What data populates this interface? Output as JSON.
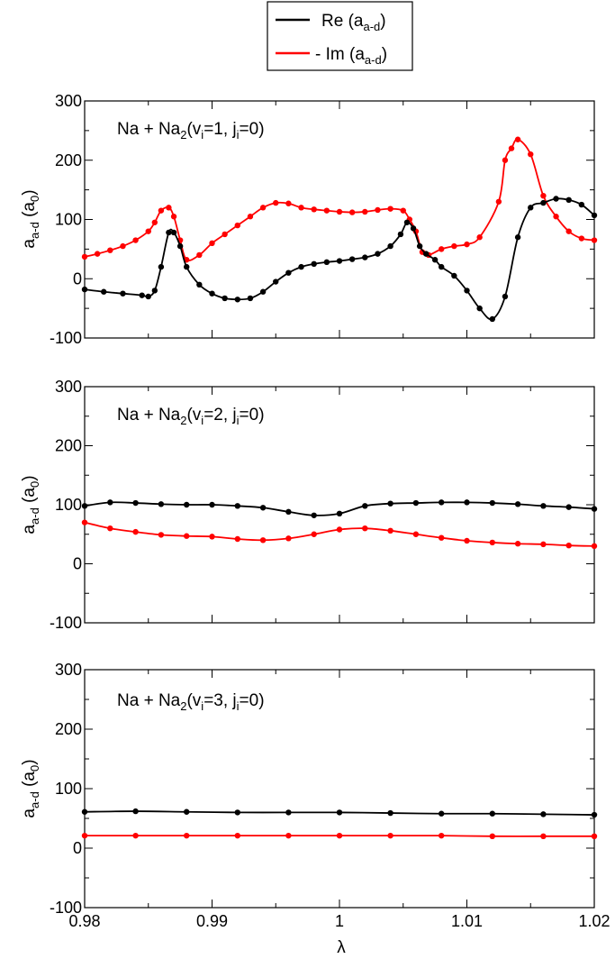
{
  "chart_data": {
    "type": "line",
    "xlabel": "λ",
    "ylabel_main": "a",
    "ylabel_sub": "a-d",
    "ylabel_unit_main": "a",
    "ylabel_unit_sub": "0",
    "xlim": [
      0.98,
      1.02
    ],
    "ylim": [
      -100,
      300
    ],
    "x_ticks": [
      "0.98",
      "0.99",
      "1",
      "1.01",
      "1.02"
    ],
    "y_ticks": [
      "-100",
      "0",
      "100",
      "200",
      "300"
    ],
    "legend": {
      "position": "top-center",
      "entries": [
        {
          "main": "Re (a",
          "sub": "a-d",
          "close": ")",
          "color": "#000000"
        },
        {
          "main": "- Im (a",
          "sub": "a-d",
          "close": ")",
          "color": "#ff0000"
        }
      ]
    },
    "series_colors": {
      "re": "#000000",
      "im": "#ff0000"
    },
    "panels": [
      {
        "label_pre": "Na + Na",
        "label_sub2": "2",
        "label_mid": "(v",
        "label_i1": "i",
        "label_post1": "=1, j",
        "label_i2": "i",
        "label_post2": "=0)",
        "series": [
          {
            "name": "Re",
            "x": [
              0.98,
              0.9815,
              0.983,
              0.9845,
              0.985,
              0.9855,
              0.986,
              0.9866,
              0.987,
              0.9875,
              0.988,
              0.989,
              0.99,
              0.991,
              0.992,
              0.993,
              0.994,
              0.995,
              0.996,
              0.997,
              0.998,
              0.999,
              1.0,
              1.001,
              1.002,
              1.003,
              1.004,
              1.0048,
              1.0053,
              1.0058,
              1.0063,
              1.0068,
              1.0075,
              1.008,
              1.009,
              1.01,
              1.011,
              1.012,
              1.013,
              1.014,
              1.015,
              1.016,
              1.017,
              1.018,
              1.019,
              1.02
            ],
            "y": [
              -18,
              -22,
              -25,
              -28,
              -30,
              -20,
              20,
              78,
              78,
              55,
              20,
              -10,
              -25,
              -33,
              -35,
              -33,
              -22,
              -5,
              10,
              20,
              25,
              28,
              30,
              33,
              36,
              42,
              55,
              75,
              95,
              85,
              55,
              42,
              32,
              20,
              5,
              -20,
              -50,
              -68,
              -30,
              70,
              120,
              128,
              135,
              133,
              125,
              107
            ]
          },
          {
            "name": "Im",
            "x": [
              0.98,
              0.981,
              0.982,
              0.983,
              0.984,
              0.985,
              0.9855,
              0.986,
              0.9866,
              0.987,
              0.9875,
              0.988,
              0.989,
              0.99,
              0.991,
              0.992,
              0.993,
              0.994,
              0.995,
              0.996,
              0.997,
              0.998,
              0.999,
              1.0,
              1.001,
              1.002,
              1.003,
              1.004,
              1.005,
              1.0055,
              1.006,
              1.0065,
              1.007,
              1.008,
              1.009,
              1.01,
              1.011,
              1.0125,
              1.013,
              1.0135,
              1.014,
              1.015,
              1.016,
              1.017,
              1.018,
              1.019,
              1.02
            ],
            "y": [
              37,
              42,
              48,
              55,
              65,
              80,
              95,
              115,
              120,
              105,
              65,
              32,
              40,
              60,
              75,
              90,
              105,
              120,
              128,
              127,
              120,
              117,
              115,
              113,
              112,
              113,
              116,
              118,
              115,
              100,
              80,
              45,
              40,
              50,
              55,
              58,
              70,
              130,
              200,
              220,
              235,
              210,
              140,
              105,
              80,
              68,
              65
            ]
          }
        ]
      },
      {
        "label_pre": "Na + Na",
        "label_sub2": "2",
        "label_mid": "(v",
        "label_i1": "i",
        "label_post1": "=2, j",
        "label_i2": "i",
        "label_post2": "=0)",
        "series": [
          {
            "name": "Re",
            "x": [
              0.98,
              0.982,
              0.984,
              0.986,
              0.988,
              0.99,
              0.992,
              0.994,
              0.996,
              0.998,
              1.0,
              1.002,
              1.004,
              1.006,
              1.008,
              1.01,
              1.012,
              1.014,
              1.016,
              1.018,
              1.02
            ],
            "y": [
              98,
              104,
              103,
              101,
              100,
              100,
              98,
              95,
              88,
              82,
              85,
              98,
              102,
              103,
              104,
              104,
              103,
              101,
              98,
              96,
              93
            ]
          },
          {
            "name": "Im",
            "x": [
              0.98,
              0.982,
              0.984,
              0.986,
              0.988,
              0.99,
              0.992,
              0.994,
              0.996,
              0.998,
              1.0,
              1.002,
              1.004,
              1.006,
              1.008,
              1.01,
              1.012,
              1.014,
              1.016,
              1.018,
              1.02
            ],
            "y": [
              70,
              60,
              54,
              49,
              47,
              46,
              42,
              40,
              43,
              50,
              58,
              60,
              56,
              50,
              44,
              39,
              36,
              34,
              33,
              31,
              30
            ]
          }
        ]
      },
      {
        "label_pre": "Na + Na",
        "label_sub2": "2",
        "label_mid": "(v",
        "label_i1": "i",
        "label_post1": "=3, j",
        "label_i2": "i",
        "label_post2": "=0)",
        "series": [
          {
            "name": "Re",
            "x": [
              0.98,
              0.984,
              0.988,
              0.992,
              0.996,
              1.0,
              1.004,
              1.008,
              1.012,
              1.016,
              1.02
            ],
            "y": [
              61,
              62,
              61,
              60,
              60,
              60,
              59,
              58,
              58,
              57,
              56
            ]
          },
          {
            "name": "Im",
            "x": [
              0.98,
              0.984,
              0.988,
              0.992,
              0.996,
              1.0,
              1.004,
              1.008,
              1.012,
              1.016,
              1.02
            ],
            "y": [
              21,
              21,
              21,
              21,
              21,
              21,
              21,
              21,
              20,
              20,
              20
            ]
          }
        ]
      }
    ]
  }
}
